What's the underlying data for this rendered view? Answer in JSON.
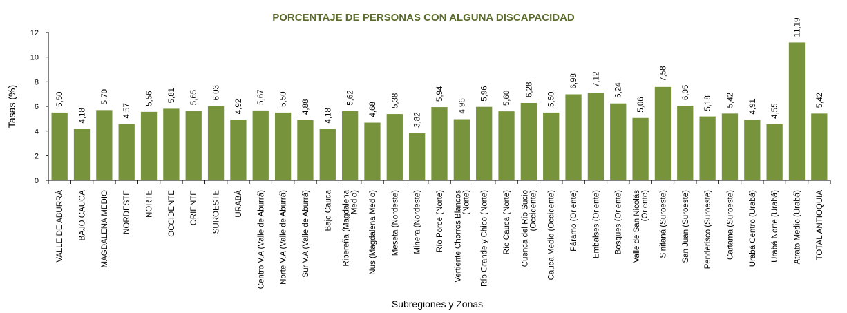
{
  "chart_data": {
    "type": "bar",
    "title": "PORCENTAJE DE PERSONAS CON ALGUNA DISCAPACIDAD",
    "xlabel": "Subregiones y Zonas",
    "ylabel": "Tasas (%)",
    "ylim": [
      0,
      12
    ],
    "yticks": [
      "0",
      "2",
      "4",
      "6",
      "8",
      "10",
      "12"
    ],
    "grid": false,
    "bar_color": "#77933c",
    "categories": [
      [
        "VALLE DE ABURRÁ"
      ],
      [
        "BAJO CAUCA"
      ],
      [
        "MAGDALENA MEDIO"
      ],
      [
        "NORDESTE"
      ],
      [
        "NORTE"
      ],
      [
        "OCCIDENTE"
      ],
      [
        "ORIENTE"
      ],
      [
        "SUROESTE"
      ],
      [
        "URABÁ"
      ],
      [
        "Centro V.A (Valle de Aburrá)"
      ],
      [
        "Norte V.A (Valle de Aburrá)"
      ],
      [
        "Sur V.A (Valle de Aburrá)"
      ],
      [
        "Bajo Cauca"
      ],
      [
        "Ribereña  (Magdalena",
        "Medio)"
      ],
      [
        "Nus  (Magdalena Medio)"
      ],
      [
        "Meseta  (Nordeste)"
      ],
      [
        "Minera  (Nordeste)"
      ],
      [
        "Río Porce   (Norte)"
      ],
      [
        "Vertiente Chorros Blancos",
        "(Norte)"
      ],
      [
        "Río Grande y Chico  (Norte)"
      ],
      [
        "Río Cauca  (Norte)"
      ],
      [
        "Cuenca del Río Sucio",
        "(Occidente)"
      ],
      [
        "Cauca Medio  (Occidente)"
      ],
      [
        "Páramo  (Oriente)"
      ],
      [
        "Embalses  (Oriente)"
      ],
      [
        "Bosques  (Oriente)"
      ],
      [
        "Valle de San Nicolás",
        "(Oriente)"
      ],
      [
        "Sinifaná  (Suroeste)"
      ],
      [
        "San Juan  (Suroeste)"
      ],
      [
        "Penderisco  (Suroeste)"
      ],
      [
        "Cartama  (Suroeste)"
      ],
      [
        "Urabá Centro  (Urabá)"
      ],
      [
        "Urabá Norte  (Urabá)"
      ],
      [
        "Atrato Medio  (Urabá)"
      ],
      [
        "TOTAL ANTIOQUIA"
      ]
    ],
    "values": [
      5.5,
      4.18,
      5.7,
      4.57,
      5.56,
      5.81,
      5.65,
      6.03,
      4.92,
      5.67,
      5.5,
      4.88,
      4.18,
      5.62,
      4.68,
      5.38,
      3.82,
      5.94,
      4.96,
      5.96,
      5.6,
      6.28,
      5.5,
      6.98,
      7.12,
      6.24,
      5.06,
      7.58,
      6.05,
      5.18,
      5.42,
      4.91,
      4.55,
      11.19,
      5.42
    ],
    "value_labels": [
      "5,50",
      "4,18",
      "5,70",
      "4,57",
      "5,56",
      "5,81",
      "5,65",
      "6,03",
      "4,92",
      "5,67",
      "5,50",
      "4,88",
      "4,18",
      "5,62",
      "4,68",
      "5,38",
      "3,82",
      "5,94",
      "4,96",
      "5,96",
      "5,60",
      "6,28",
      "5,50",
      "6,98",
      "7,12",
      "6,24",
      "5,06",
      "7,58",
      "6,05",
      "5,18",
      "5,42",
      "4,91",
      "4,55",
      "11,19",
      "5,42"
    ]
  }
}
